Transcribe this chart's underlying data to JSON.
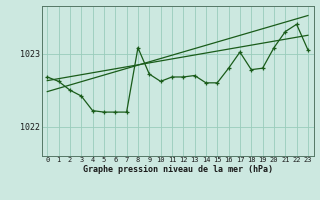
{
  "bg_color": "#cce8e0",
  "grid_color": "#99ccbb",
  "line_color": "#1a5c1a",
  "x_label": "Graphe pression niveau de la mer (hPa)",
  "ylim": [
    1021.6,
    1023.65
  ],
  "yticks": [
    1022,
    1023
  ],
  "xlim": [
    -0.5,
    23.5
  ],
  "x_ticks": [
    0,
    1,
    2,
    3,
    4,
    5,
    6,
    7,
    8,
    9,
    10,
    11,
    12,
    13,
    14,
    15,
    16,
    17,
    18,
    19,
    20,
    21,
    22,
    23
  ],
  "actual_x": [
    0,
    1,
    2,
    3,
    4,
    5,
    6,
    7,
    8,
    9,
    10,
    11,
    12,
    13,
    14,
    15,
    16,
    17,
    18,
    19,
    20,
    21,
    22,
    23
  ],
  "actual_y": [
    1022.68,
    1022.62,
    1022.5,
    1022.42,
    1022.22,
    1022.2,
    1022.2,
    1022.2,
    1023.08,
    1022.72,
    1022.62,
    1022.68,
    1022.68,
    1022.7,
    1022.6,
    1022.6,
    1022.8,
    1023.02,
    1022.78,
    1022.8,
    1023.08,
    1023.3,
    1023.4,
    1023.05
  ],
  "trend1_x": [
    0,
    23
  ],
  "trend1_y": [
    1022.63,
    1023.25
  ],
  "trend2_x": [
    0,
    23
  ],
  "trend2_y": [
    1022.48,
    1023.52
  ],
  "figsize": [
    3.2,
    2.0
  ],
  "dpi": 100,
  "label_fontsize": 6.0,
  "tick_fontsize": 5.0
}
